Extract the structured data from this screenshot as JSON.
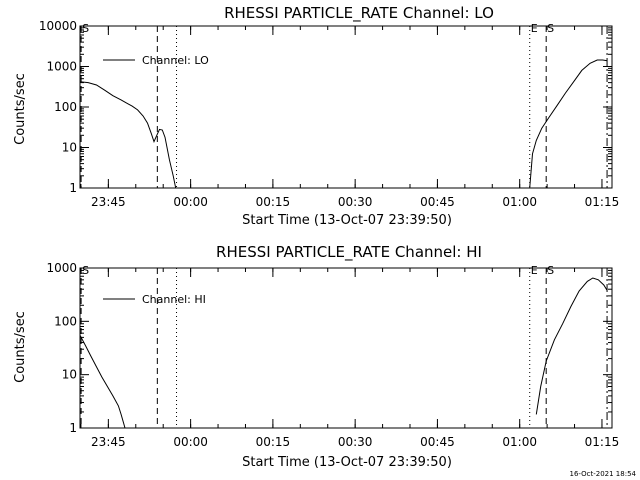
{
  "footer": {
    "timestamp": "16-Oct-2021 18:54"
  },
  "chart_data": [
    {
      "type": "line",
      "title": "RHESSI PARTICLE_RATE Channel: LO",
      "xlabel": "Start Time (13-Oct-07 23:39:50)",
      "ylabel": "Counts/sec",
      "legend": {
        "label": "Channel: LO",
        "placement": "top-left"
      },
      "x_unit": "minutes after 23:39:50",
      "xlim": [
        0,
        97
      ],
      "ylim": [
        1,
        10000
      ],
      "y_scale": "log",
      "x_ticks": [
        {
          "t": 5.17,
          "label": "23:45"
        },
        {
          "t": 20.17,
          "label": "00:00"
        },
        {
          "t": 35.17,
          "label": "00:15"
        },
        {
          "t": 50.17,
          "label": "00:30"
        },
        {
          "t": 65.17,
          "label": "00:45"
        },
        {
          "t": 80.17,
          "label": "01:00"
        },
        {
          "t": 95.17,
          "label": "01:15"
        }
      ],
      "y_ticks": [
        {
          "v": 1,
          "label": "1"
        },
        {
          "v": 10,
          "label": "10"
        },
        {
          "v": 100,
          "label": "100"
        },
        {
          "v": 1000,
          "label": "1000"
        },
        {
          "v": 10000,
          "label": "10000"
        }
      ],
      "markers": [
        {
          "t": 0.2,
          "style": "dash",
          "label": "S"
        },
        {
          "t": 14.1,
          "style": "dash",
          "label": ""
        },
        {
          "t": 17.6,
          "style": "dot",
          "label": ""
        },
        {
          "t": 82.0,
          "style": "dot",
          "label": "E"
        },
        {
          "t": 85.0,
          "style": "dash",
          "label": "S"
        },
        {
          "t": 96.1,
          "style": "dashdot",
          "label": ""
        }
      ],
      "series": [
        {
          "segments": [
            [
              [
                0,
                420
              ],
              [
                1.5,
                400
              ],
              [
                3,
                350
              ],
              [
                4.5,
                260
              ],
              [
                6,
                190
              ],
              [
                7.5,
                150
              ],
              [
                8.5,
                125
              ],
              [
                9.5,
                105
              ],
              [
                10.5,
                85
              ],
              [
                11.5,
                60
              ],
              [
                12.3,
                40
              ],
              [
                13,
                22
              ],
              [
                13.5,
                14
              ],
              [
                14,
                20
              ],
              [
                14.5,
                28
              ],
              [
                15,
                27
              ],
              [
                15.5,
                18
              ],
              [
                16.3,
                5
              ],
              [
                17,
                2
              ],
              [
                17.6,
                0.8
              ]
            ],
            [
              [
                82.0,
                1.0
              ],
              [
                82.5,
                7
              ],
              [
                83.2,
                15
              ],
              [
                84.2,
                30
              ],
              [
                85.5,
                55
              ],
              [
                87,
                110
              ],
              [
                88.5,
                220
              ],
              [
                90,
                420
              ],
              [
                91.5,
                800
              ],
              [
                93,
                1200
              ],
              [
                94.3,
                1450
              ],
              [
                95.3,
                1450
              ],
              [
                96.1,
                1380
              ]
            ]
          ]
        }
      ]
    },
    {
      "type": "line",
      "title": "RHESSI PARTICLE_RATE Channel: HI",
      "xlabel": "Start Time (13-Oct-07 23:39:50)",
      "ylabel": "Counts/sec",
      "legend": {
        "label": "Channel: HI",
        "placement": "top-left"
      },
      "x_unit": "minutes after 23:39:50",
      "xlim": [
        0,
        97
      ],
      "ylim": [
        1,
        1000
      ],
      "y_scale": "log",
      "x_ticks": [
        {
          "t": 5.17,
          "label": "23:45"
        },
        {
          "t": 20.17,
          "label": "00:00"
        },
        {
          "t": 35.17,
          "label": "00:15"
        },
        {
          "t": 50.17,
          "label": "00:30"
        },
        {
          "t": 65.17,
          "label": "00:45"
        },
        {
          "t": 80.17,
          "label": "01:00"
        },
        {
          "t": 95.17,
          "label": "01:15"
        }
      ],
      "y_ticks": [
        {
          "v": 1,
          "label": "1"
        },
        {
          "v": 10,
          "label": "10"
        },
        {
          "v": 100,
          "label": "100"
        },
        {
          "v": 1000,
          "label": "1000"
        }
      ],
      "markers": [
        {
          "t": 0.2,
          "style": "dash",
          "label": "S"
        },
        {
          "t": 14.1,
          "style": "dash",
          "label": ""
        },
        {
          "t": 17.6,
          "style": "dot",
          "label": ""
        },
        {
          "t": 82.0,
          "style": "dot",
          "label": "E"
        },
        {
          "t": 85.0,
          "style": "dash",
          "label": "S"
        },
        {
          "t": 96.1,
          "style": "dashdot",
          "label": ""
        }
      ],
      "series": [
        {
          "segments": [
            [
              [
                0,
                55
              ],
              [
                1,
                35
              ],
              [
                2,
                22
              ],
              [
                3,
                14
              ],
              [
                4,
                9
              ],
              [
                5,
                6
              ],
              [
                6,
                4
              ],
              [
                7,
                2.6
              ],
              [
                7.5,
                1.8
              ],
              [
                8.2,
                1.0
              ]
            ],
            [
              [
                83.2,
                1.8
              ],
              [
                84,
                6
              ],
              [
                85,
                18
              ],
              [
                86.5,
                45
              ],
              [
                88,
                90
              ],
              [
                89.5,
                190
              ],
              [
                91,
                370
              ],
              [
                92.5,
                560
              ],
              [
                93.5,
                650
              ],
              [
                94.5,
                600
              ],
              [
                95.5,
                480
              ],
              [
                96.1,
                380
              ]
            ]
          ]
        }
      ]
    }
  ]
}
